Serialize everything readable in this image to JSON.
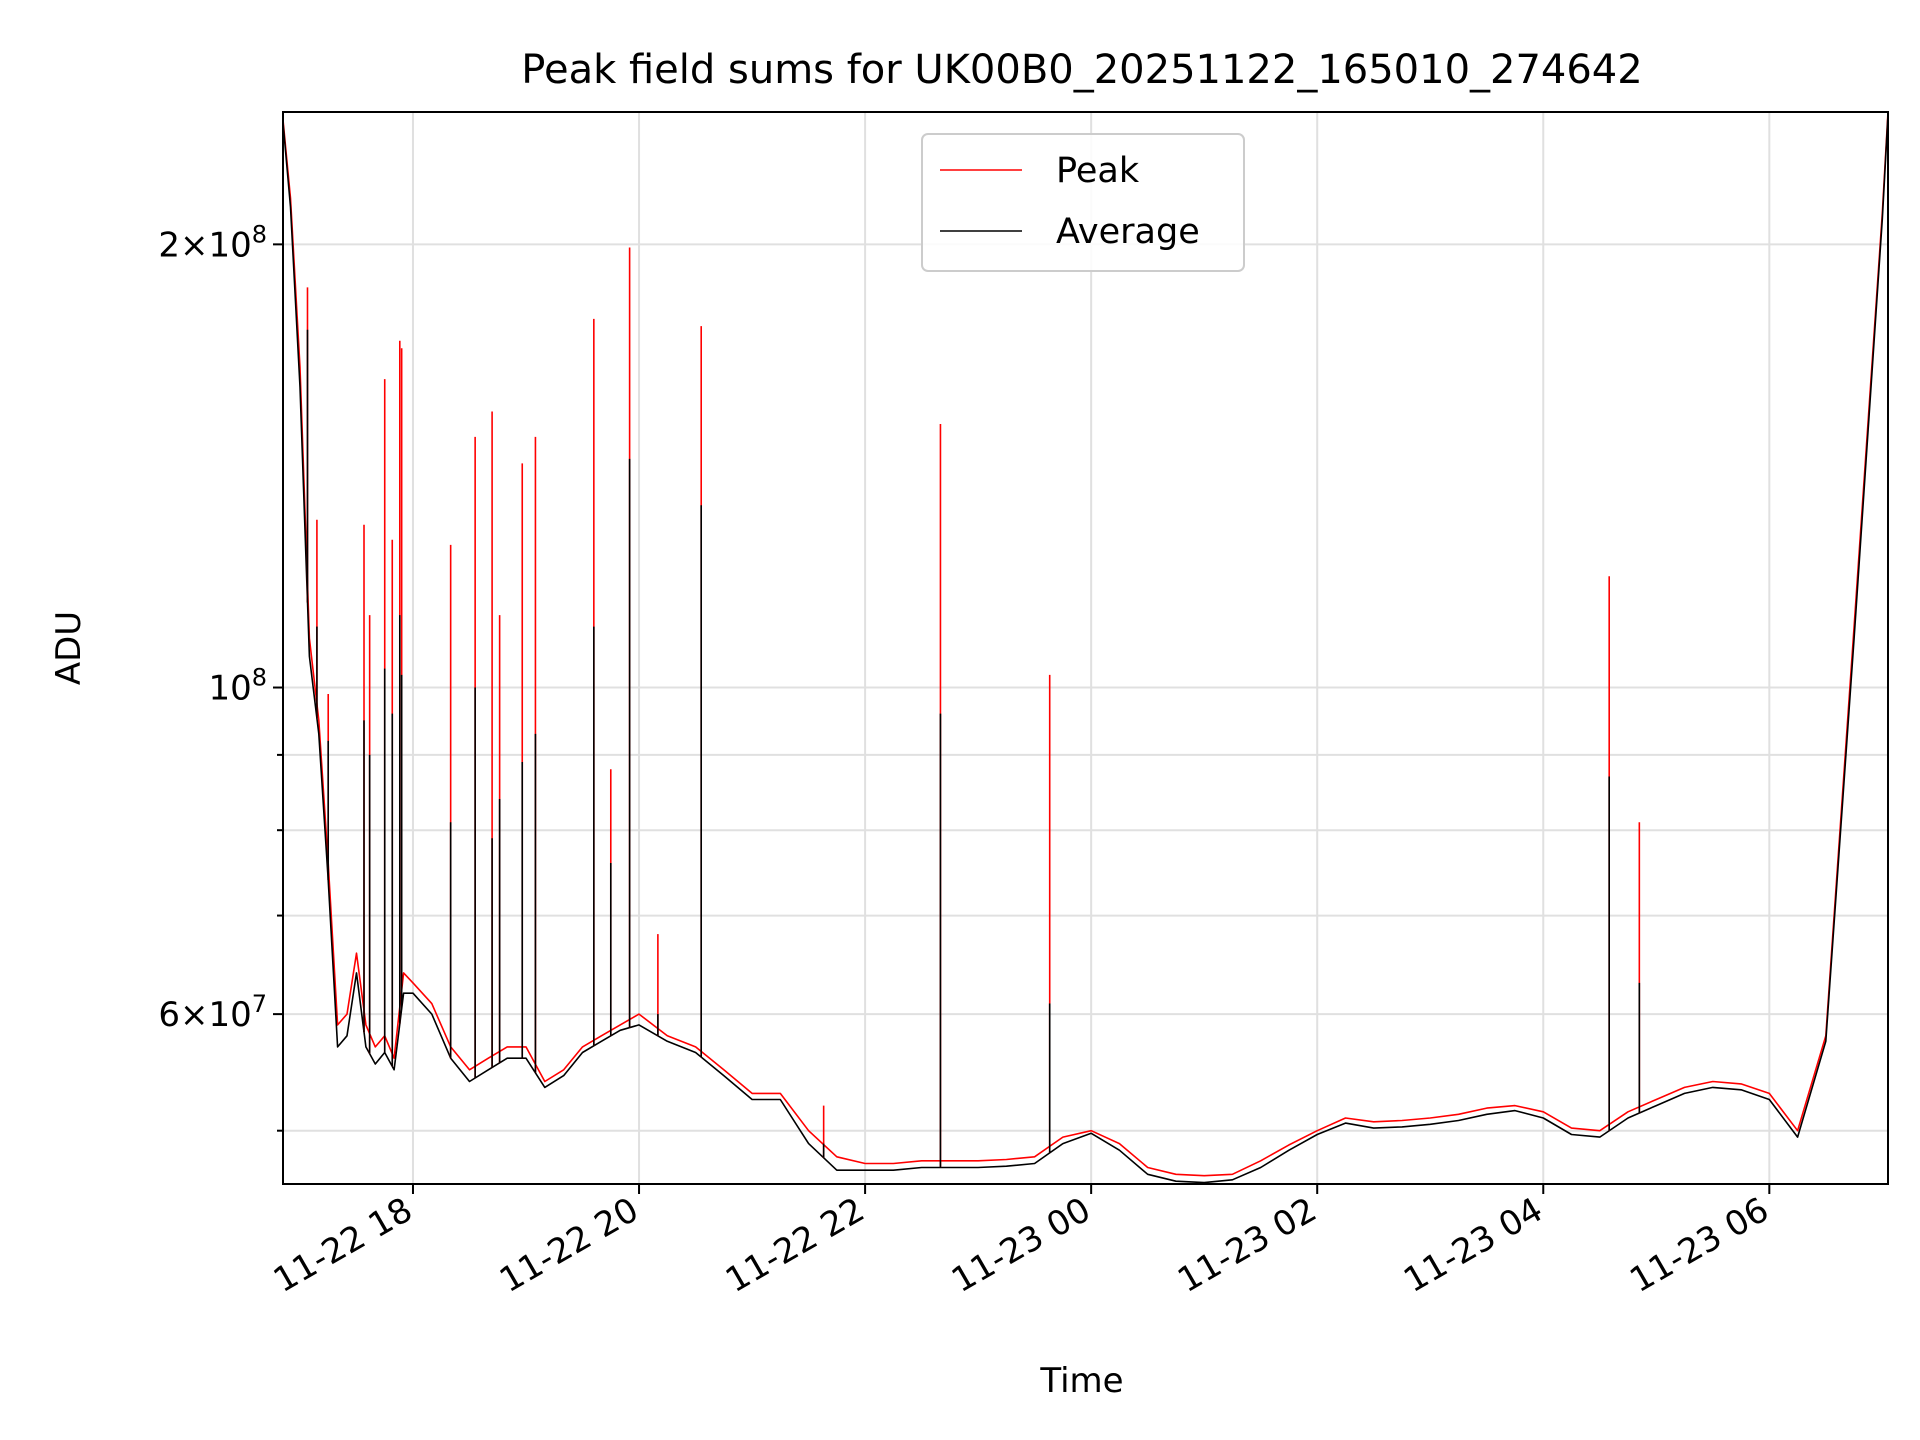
{
  "chart_data": {
    "type": "line",
    "title": "Peak field sums for UK00B0_20251122_165010_274642",
    "xlabel": "Time",
    "ylabel": "ADU",
    "y_scale": "log",
    "grid": true,
    "legend_position": "top-center",
    "xlim": [
      "2025-11-22 16:51",
      "2025-11-23 07:03"
    ],
    "ylim": [
      46000000,
      246000000
    ],
    "x_ticks": [
      {
        "value": "2025-11-22 18:00",
        "label": "11-22 18"
      },
      {
        "value": "2025-11-22 20:00",
        "label": "11-22 20"
      },
      {
        "value": "2025-11-22 22:00",
        "label": "11-22 22"
      },
      {
        "value": "2025-11-23 00:00",
        "label": "11-23 00"
      },
      {
        "value": "2025-11-23 02:00",
        "label": "11-23 02"
      },
      {
        "value": "2025-11-23 04:00",
        "label": "11-23 04"
      },
      {
        "value": "2025-11-23 06:00",
        "label": "11-23 06"
      }
    ],
    "y_ticks": [
      {
        "value": 60000000,
        "mant": "6",
        "exp": "7"
      },
      {
        "value": 100000000,
        "mant": "",
        "exp": "8"
      },
      {
        "value": 200000000,
        "mant": "2",
        "exp": "8"
      }
    ],
    "y_minor_ticks": [
      50000000,
      70000000,
      80000000,
      90000000
    ],
    "series": [
      {
        "name": "Peak",
        "color": "#ff0000",
        "x": [
          "2025-11-22 16:51",
          "2025-11-22 16:55",
          "2025-11-22 17:00",
          "2025-11-22 17:05",
          "2025-11-22 17:10",
          "2025-11-22 17:15",
          "2025-11-22 17:20",
          "2025-11-22 17:25",
          "2025-11-22 17:30",
          "2025-11-22 17:35",
          "2025-11-22 17:40",
          "2025-11-22 17:45",
          "2025-11-22 17:50",
          "2025-11-22 17:55",
          "2025-11-22 18:00",
          "2025-11-22 18:10",
          "2025-11-22 18:20",
          "2025-11-22 18:30",
          "2025-11-22 18:40",
          "2025-11-22 18:50",
          "2025-11-22 19:00",
          "2025-11-22 19:10",
          "2025-11-22 19:20",
          "2025-11-22 19:30",
          "2025-11-22 19:40",
          "2025-11-22 19:50",
          "2025-11-22 20:00",
          "2025-11-22 20:15",
          "2025-11-22 20:30",
          "2025-11-22 20:45",
          "2025-11-22 21:00",
          "2025-11-22 21:15",
          "2025-11-22 21:30",
          "2025-11-22 21:45",
          "2025-11-22 22:00",
          "2025-11-22 22:15",
          "2025-11-22 22:30",
          "2025-11-22 22:45",
          "2025-11-22 23:00",
          "2025-11-22 23:15",
          "2025-11-22 23:30",
          "2025-11-22 23:45",
          "2025-11-23 00:00",
          "2025-11-23 00:15",
          "2025-11-23 00:30",
          "2025-11-23 00:45",
          "2025-11-23 01:00",
          "2025-11-23 01:15",
          "2025-11-23 01:30",
          "2025-11-23 01:45",
          "2025-11-23 02:00",
          "2025-11-23 02:15",
          "2025-11-23 02:30",
          "2025-11-23 02:45",
          "2025-11-23 03:00",
          "2025-11-23 03:15",
          "2025-11-23 03:30",
          "2025-11-23 03:45",
          "2025-11-23 04:00",
          "2025-11-23 04:15",
          "2025-11-23 04:30",
          "2025-11-23 04:45",
          "2025-11-23 05:00",
          "2025-11-23 05:15",
          "2025-11-23 05:30",
          "2025-11-23 05:45",
          "2025-11-23 06:00",
          "2025-11-23 06:15",
          "2025-11-23 06:30",
          "2025-11-23 06:45",
          "2025-11-23 07:00",
          "2025-11-23 07:03"
        ],
        "values": [
          243000000,
          215000000,
          165000000,
          108000000,
          95000000,
          76000000,
          59000000,
          60000000,
          66000000,
          59000000,
          57000000,
          58000000,
          56000000,
          64000000,
          63000000,
          61000000,
          57000000,
          55000000,
          56000000,
          57000000,
          57000000,
          54000000,
          55000000,
          57000000,
          58000000,
          59000000,
          60000000,
          58000000,
          57000000,
          55000000,
          53000000,
          53000000,
          50000000,
          48000000,
          47500000,
          47500000,
          47700000,
          47700000,
          47700000,
          47800000,
          48000000,
          49500000,
          50000000,
          49000000,
          47200000,
          46700000,
          46600000,
          46700000,
          47700000,
          48900000,
          50000000,
          51000000,
          50700000,
          50800000,
          51000000,
          51300000,
          51800000,
          52000000,
          51500000,
          50200000,
          50000000,
          51500000,
          52500000,
          53500000,
          54000000,
          53800000,
          53000000,
          50000000,
          58000000,
          110000000,
          210000000,
          246000000
        ]
      },
      {
        "name": "Average",
        "color": "#000000",
        "x": [
          "2025-11-22 16:51",
          "2025-11-22 16:55",
          "2025-11-22 17:00",
          "2025-11-22 17:05",
          "2025-11-22 17:10",
          "2025-11-22 17:15",
          "2025-11-22 17:20",
          "2025-11-22 17:25",
          "2025-11-22 17:30",
          "2025-11-22 17:35",
          "2025-11-22 17:40",
          "2025-11-22 17:45",
          "2025-11-22 17:50",
          "2025-11-22 17:55",
          "2025-11-22 18:00",
          "2025-11-22 18:10",
          "2025-11-22 18:20",
          "2025-11-22 18:30",
          "2025-11-22 18:40",
          "2025-11-22 18:50",
          "2025-11-22 19:00",
          "2025-11-22 19:10",
          "2025-11-22 19:20",
          "2025-11-22 19:30",
          "2025-11-22 19:40",
          "2025-11-22 19:50",
          "2025-11-22 20:00",
          "2025-11-22 20:15",
          "2025-11-22 20:30",
          "2025-11-22 20:45",
          "2025-11-22 21:00",
          "2025-11-22 21:15",
          "2025-11-22 21:30",
          "2025-11-22 21:45",
          "2025-11-22 22:00",
          "2025-11-22 22:15",
          "2025-11-22 22:30",
          "2025-11-22 22:45",
          "2025-11-22 23:00",
          "2025-11-22 23:15",
          "2025-11-22 23:30",
          "2025-11-22 23:45",
          "2025-11-23 00:00",
          "2025-11-23 00:15",
          "2025-11-23 00:30",
          "2025-11-23 00:45",
          "2025-11-23 01:00",
          "2025-11-23 01:15",
          "2025-11-23 01:30",
          "2025-11-23 01:45",
          "2025-11-23 02:00",
          "2025-11-23 02:15",
          "2025-11-23 02:30",
          "2025-11-23 02:45",
          "2025-11-23 03:00",
          "2025-11-23 03:15",
          "2025-11-23 03:30",
          "2025-11-23 03:45",
          "2025-11-23 04:00",
          "2025-11-23 04:15",
          "2025-11-23 04:30",
          "2025-11-23 04:45",
          "2025-11-23 05:00",
          "2025-11-23 05:15",
          "2025-11-23 05:30",
          "2025-11-23 05:45",
          "2025-11-23 06:00",
          "2025-11-23 06:15",
          "2025-11-23 06:30",
          "2025-11-23 06:45",
          "2025-11-23 07:00",
          "2025-11-23 07:03"
        ],
        "values": [
          242000000,
          212000000,
          160000000,
          105000000,
          93000000,
          74000000,
          57000000,
          58000000,
          64000000,
          57000000,
          55500000,
          56500000,
          55000000,
          62000000,
          62000000,
          60000000,
          56000000,
          54000000,
          55000000,
          56000000,
          56000000,
          53500000,
          54500000,
          56500000,
          57500000,
          58500000,
          59000000,
          57500000,
          56500000,
          54500000,
          52500000,
          52500000,
          49000000,
          47000000,
          47000000,
          47000000,
          47200000,
          47200000,
          47200000,
          47300000,
          47500000,
          49000000,
          49800000,
          48500000,
          46700000,
          46200000,
          46100000,
          46300000,
          47200000,
          48500000,
          49700000,
          50600000,
          50200000,
          50300000,
          50500000,
          50800000,
          51300000,
          51600000,
          51000000,
          49700000,
          49500000,
          51000000,
          52000000,
          53000000,
          53500000,
          53300000,
          52500000,
          49500000,
          57500000,
          108000000,
          208000000,
          245000000
        ]
      }
    ],
    "spikes": [
      {
        "x": "2025-11-22 17:04",
        "peak": 187000000,
        "average": 175000000
      },
      {
        "x": "2025-11-22 17:09",
        "peak": 130000000,
        "average": 110000000
      },
      {
        "x": "2025-11-22 17:15",
        "peak": 99000000,
        "average": 92000000
      },
      {
        "x": "2025-11-22 17:34",
        "peak": 129000000,
        "average": 95000000
      },
      {
        "x": "2025-11-22 17:37",
        "peak": 112000000,
        "average": 90000000
      },
      {
        "x": "2025-11-22 17:45",
        "peak": 162000000,
        "average": 103000000
      },
      {
        "x": "2025-11-22 17:49",
        "peak": 126000000,
        "average": 96000000
      },
      {
        "x": "2025-11-22 17:53",
        "peak": 172000000,
        "average": 112000000
      },
      {
        "x": "2025-11-22 17:54",
        "peak": 170000000,
        "average": 102000000
      },
      {
        "x": "2025-11-22 18:20",
        "peak": 125000000,
        "average": 81000000
      },
      {
        "x": "2025-11-22 18:33",
        "peak": 148000000,
        "average": 100000000
      },
      {
        "x": "2025-11-22 18:42",
        "peak": 154000000,
        "average": 79000000
      },
      {
        "x": "2025-11-22 18:46",
        "peak": 112000000,
        "average": 84000000
      },
      {
        "x": "2025-11-22 18:58",
        "peak": 142000000,
        "average": 89000000
      },
      {
        "x": "2025-11-22 19:05",
        "peak": 148000000,
        "average": 93000000
      },
      {
        "x": "2025-11-22 19:36",
        "peak": 178000000,
        "average": 110000000
      },
      {
        "x": "2025-11-22 19:45",
        "peak": 88000000,
        "average": 76000000
      },
      {
        "x": "2025-11-22 19:55",
        "peak": 199000000,
        "average": 143000000
      },
      {
        "x": "2025-11-22 20:10",
        "peak": 68000000,
        "average": 60000000
      },
      {
        "x": "2025-11-22 20:33",
        "peak": 176000000,
        "average": 133000000
      },
      {
        "x": "2025-11-22 21:38",
        "peak": 52000000,
        "average": 49000000
      },
      {
        "x": "2025-11-22 22:40",
        "peak": 151000000,
        "average": 96000000
      },
      {
        "x": "2025-11-22 23:38",
        "peak": 102000000,
        "average": 61000000
      },
      {
        "x": "2025-11-23 04:35",
        "peak": 119000000,
        "average": 87000000
      },
      {
        "x": "2025-11-23 04:51",
        "peak": 81000000,
        "average": 63000000
      }
    ]
  }
}
